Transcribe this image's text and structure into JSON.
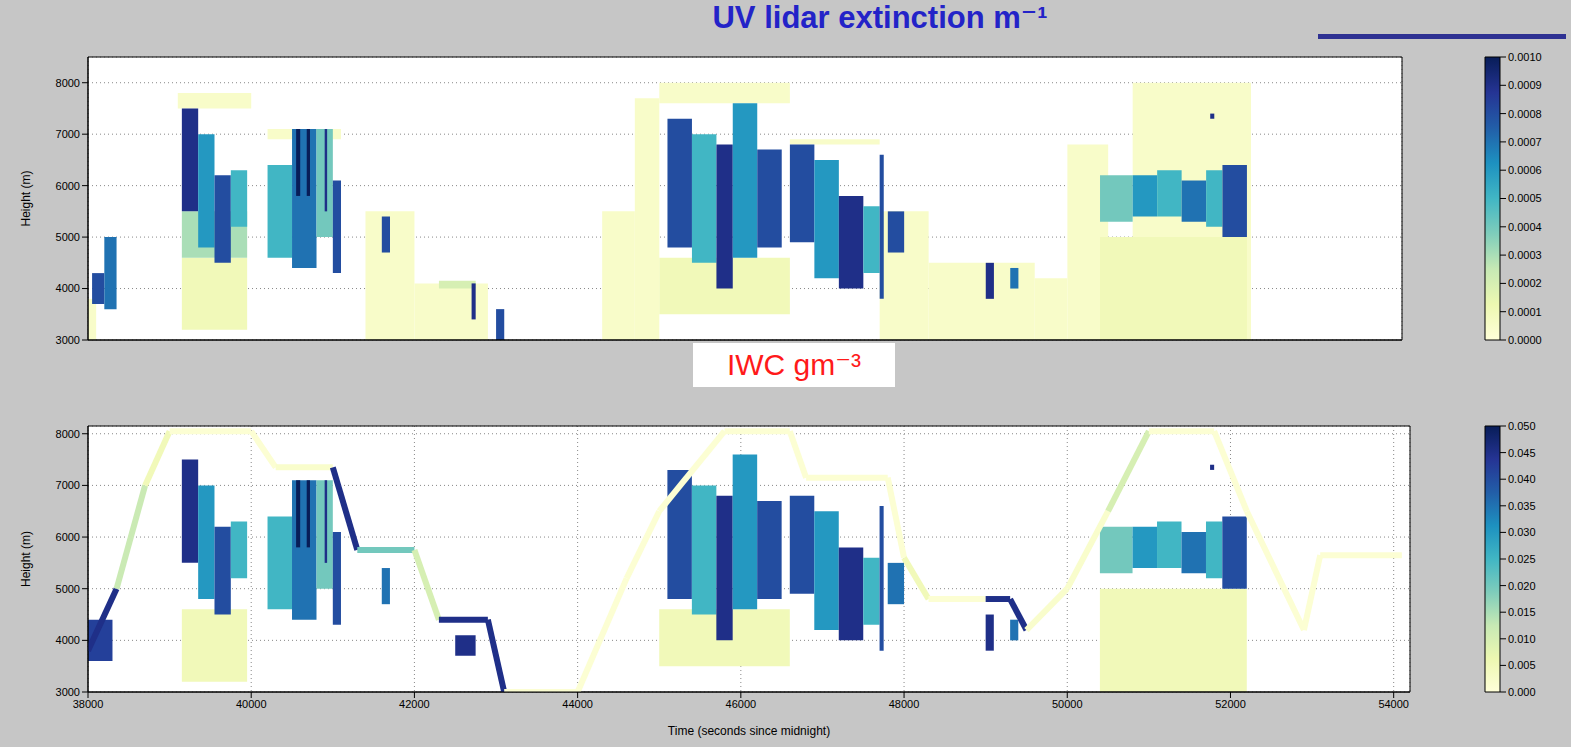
{
  "chart_data": [
    {
      "type": "heatmap",
      "title": "UV lidar extinction m⁻¹",
      "y_label": "Height (m)",
      "xlim": [
        38000,
        54100
      ],
      "ylim": [
        3000,
        8500
      ],
      "xticks": [
        38000,
        40000,
        42000,
        44000,
        46000,
        48000,
        50000,
        52000,
        54000
      ],
      "yticks": [
        3000,
        4000,
        5000,
        6000,
        7000,
        8000
      ],
      "grid": true,
      "tick_labels": "y",
      "colorbar": {
        "range": [
          0,
          0.001
        ],
        "ticks": [
          {
            "value": 0,
            "label": "0.0000"
          },
          0.0001,
          0.0002,
          0.0003,
          0.0004,
          0.0005,
          0.0006,
          0.0007,
          0.0008,
          0.0009,
          {
            "value": 0.001,
            "label": "0.0010"
          }
        ]
      },
      "cells": [
        [
          38000,
          38100,
          3000,
          3800,
          5e-05
        ],
        [
          38050,
          38200,
          3700,
          4300,
          0.0008
        ],
        [
          38200,
          38350,
          3600,
          5000,
          0.0007
        ],
        [
          39100,
          40000,
          7500,
          7800,
          5e-05
        ],
        [
          39150,
          39950,
          3200,
          4600,
          0.0001
        ],
        [
          39150,
          39950,
          4600,
          5500,
          0.0003
        ],
        [
          39150,
          39350,
          5500,
          7500,
          0.0009
        ],
        [
          39350,
          39550,
          4800,
          7000,
          0.0006
        ],
        [
          39550,
          39750,
          4500,
          6200,
          0.0008
        ],
        [
          39750,
          39950,
          5200,
          6300,
          0.0005
        ],
        [
          40200,
          41100,
          6900,
          7100,
          5e-05
        ],
        [
          40200,
          40500,
          4600,
          6400,
          0.0005
        ],
        [
          40500,
          40800,
          4400,
          7100,
          0.0007
        ],
        [
          40800,
          41000,
          5000,
          7100,
          0.0004
        ],
        [
          41000,
          41100,
          4300,
          6100,
          0.0008
        ],
        [
          40550,
          40600,
          5800,
          7100,
          0.001
        ],
        [
          40680,
          40720,
          5800,
          7100,
          0.001
        ],
        [
          40900,
          40930,
          5500,
          7100,
          0.0009
        ],
        [
          41400,
          42000,
          3000,
          5500,
          5e-05
        ],
        [
          41600,
          41700,
          4700,
          5400,
          0.0008
        ],
        [
          42000,
          42900,
          3000,
          4100,
          5e-05
        ],
        [
          42300,
          42750,
          4000,
          4150,
          0.0002
        ],
        [
          42700,
          42750,
          3400,
          4100,
          0.0009
        ],
        [
          43000,
          43100,
          3000,
          3600,
          0.0008
        ],
        [
          44300,
          44700,
          3000,
          5500,
          5e-05
        ],
        [
          44700,
          45000,
          3000,
          7700,
          5e-05
        ],
        [
          45000,
          46600,
          7600,
          8000,
          5e-05
        ],
        [
          45000,
          46600,
          3500,
          4600,
          0.0001
        ],
        [
          45100,
          45400,
          4800,
          7300,
          0.0008
        ],
        [
          45400,
          45700,
          4500,
          7000,
          0.0005
        ],
        [
          45700,
          45900,
          4000,
          6800,
          0.0009
        ],
        [
          45900,
          46200,
          4600,
          7600,
          0.0006
        ],
        [
          46200,
          46500,
          4800,
          6700,
          0.0008
        ],
        [
          46600,
          47700,
          6800,
          6900,
          5e-05
        ],
        [
          47700,
          48300,
          3000,
          5500,
          5e-05
        ],
        [
          46600,
          46900,
          4900,
          6800,
          0.0008
        ],
        [
          46900,
          47200,
          4200,
          6500,
          0.0006
        ],
        [
          47200,
          47500,
          4000,
          5800,
          0.0009
        ],
        [
          47500,
          47700,
          4300,
          5600,
          0.0005
        ],
        [
          47700,
          47750,
          3800,
          6600,
          0.0008
        ],
        [
          47800,
          48000,
          4700,
          5500,
          0.0008
        ],
        [
          48300,
          49600,
          3000,
          4500,
          5e-05
        ],
        [
          49000,
          49100,
          3800,
          4500,
          0.0009
        ],
        [
          49300,
          49400,
          4000,
          4400,
          0.0007
        ],
        [
          49600,
          50000,
          3000,
          4200,
          5e-05
        ],
        [
          50000,
          50500,
          3000,
          6800,
          5e-05
        ],
        [
          50800,
          52250,
          3000,
          8000,
          5e-05
        ],
        [
          50400,
          52200,
          3000,
          5000,
          0.0001
        ],
        [
          50400,
          50800,
          5300,
          6200,
          0.0004
        ],
        [
          50800,
          51100,
          5400,
          6200,
          0.0006
        ],
        [
          51100,
          51400,
          5400,
          6300,
          0.0005
        ],
        [
          51400,
          51700,
          5300,
          6100,
          0.0007
        ],
        [
          51700,
          51900,
          5200,
          6300,
          0.0005
        ],
        [
          51900,
          52200,
          5000,
          6400,
          0.0008
        ],
        [
          51750,
          51800,
          7300,
          7400,
          0.0009
        ]
      ]
    },
    {
      "type": "heatmap",
      "title": "IWC gm⁻³",
      "y_label": "Height (m)",
      "x_label": "Time (seconds since midnight)",
      "xlim": [
        38000,
        54200
      ],
      "ylim": [
        3000,
        8150
      ],
      "xticks": [
        38000,
        40000,
        42000,
        44000,
        46000,
        48000,
        50000,
        52000,
        54000
      ],
      "yticks": [
        3000,
        4000,
        5000,
        6000,
        7000,
        8000
      ],
      "grid": true,
      "colorbar": {
        "range": [
          0,
          0.05
        ],
        "ticks": [
          {
            "value": 0,
            "label": "0.000"
          },
          0.005,
          {
            "value": 0.01,
            "label": "0.010"
          },
          0.015,
          {
            "value": 0.02,
            "label": "0.020"
          },
          0.025,
          {
            "value": 0.03,
            "label": "0.030"
          },
          0.035,
          {
            "value": 0.04,
            "label": "0.040"
          },
          0.045,
          {
            "value": 0.05,
            "label": "0.050"
          }
        ]
      },
      "cells": [
        [
          38000,
          38300,
          3600,
          4400,
          0.042
        ],
        [
          39150,
          39950,
          3200,
          4600,
          0.005
        ],
        [
          39150,
          39350,
          5500,
          7500,
          0.045
        ],
        [
          39350,
          39550,
          4800,
          7000,
          0.03
        ],
        [
          39550,
          39750,
          4500,
          6200,
          0.04
        ],
        [
          39750,
          39950,
          5200,
          6300,
          0.025
        ],
        [
          40200,
          40500,
          4600,
          6400,
          0.025
        ],
        [
          40500,
          40800,
          4400,
          7100,
          0.035
        ],
        [
          40800,
          41000,
          5000,
          7100,
          0.02
        ],
        [
          41000,
          41100,
          4300,
          6100,
          0.04
        ],
        [
          40550,
          40600,
          5800,
          7100,
          0.05
        ],
        [
          40680,
          40720,
          5800,
          7100,
          0.05
        ],
        [
          40900,
          40930,
          5500,
          7100,
          0.045
        ],
        [
          41600,
          41700,
          4700,
          5400,
          0.035
        ],
        [
          42500,
          42750,
          3700,
          4100,
          0.045
        ],
        [
          45000,
          46600,
          3500,
          4600,
          0.005
        ],
        [
          45100,
          45400,
          4800,
          7300,
          0.04
        ],
        [
          45400,
          45700,
          4500,
          7000,
          0.025
        ],
        [
          45700,
          45900,
          4000,
          6800,
          0.045
        ],
        [
          45900,
          46200,
          4600,
          7600,
          0.03
        ],
        [
          46200,
          46500,
          4800,
          6700,
          0.04
        ],
        [
          46600,
          46900,
          4900,
          6800,
          0.04
        ],
        [
          46900,
          47200,
          4200,
          6500,
          0.03
        ],
        [
          47200,
          47500,
          4000,
          5800,
          0.045
        ],
        [
          47500,
          47700,
          4300,
          5600,
          0.025
        ],
        [
          47700,
          47750,
          3800,
          6600,
          0.04
        ],
        [
          47800,
          48000,
          4700,
          5500,
          0.035
        ],
        [
          49000,
          49100,
          3800,
          4500,
          0.045
        ],
        [
          49300,
          49400,
          4000,
          4400,
          0.035
        ],
        [
          50400,
          52200,
          3000,
          5000,
          0.005
        ],
        [
          50400,
          50800,
          5300,
          6200,
          0.02
        ],
        [
          50800,
          51100,
          5400,
          6200,
          0.03
        ],
        [
          51100,
          51400,
          5400,
          6300,
          0.025
        ],
        [
          51400,
          51700,
          5300,
          6100,
          0.035
        ],
        [
          51700,
          51900,
          5200,
          6300,
          0.025
        ],
        [
          51900,
          52200,
          5000,
          6400,
          0.04
        ],
        [
          51750,
          51800,
          7300,
          7400,
          0.045
        ]
      ],
      "track": {
        "x": [
          38000,
          38350,
          38700,
          39000,
          40000,
          40300,
          41000,
          41300,
          42000,
          42300,
          42900,
          43100,
          44000,
          44600,
          45000,
          45800,
          46600,
          46800,
          47800,
          48000,
          48300,
          49000,
          49300,
          49500,
          50000,
          50500,
          51000,
          51800,
          52200,
          52900,
          53100,
          54100
        ],
        "y": [
          3800,
          5000,
          7000,
          8050,
          8050,
          7350,
          7350,
          5750,
          5750,
          4400,
          4400,
          3000,
          3000,
          5200,
          6500,
          8050,
          8050,
          7150,
          7150,
          5600,
          4800,
          4800,
          4800,
          4200,
          5000,
          6500,
          8050,
          8050,
          6500,
          4200,
          5650,
          5650
        ],
        "values": [
          0.045,
          0.012,
          0.005,
          0.001,
          0.001,
          0.002,
          0.045,
          0.02,
          0.01,
          0.045,
          0.045,
          0.001,
          0.001,
          0.001,
          0.001,
          0.001,
          0.001,
          0.001,
          0.001,
          0.005,
          0.001,
          0.045,
          0.045,
          0.002,
          0.002,
          0.01,
          0.001,
          0.001,
          0.001,
          0.001,
          0.001,
          0.001
        ]
      }
    }
  ]
}
